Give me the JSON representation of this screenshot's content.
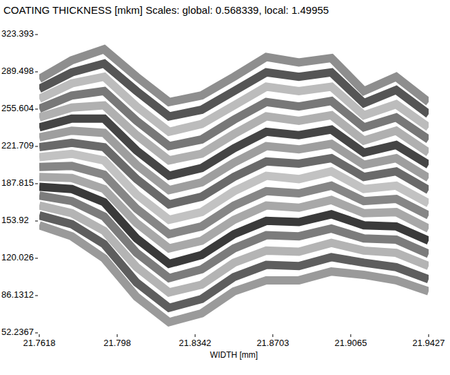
{
  "chart_data": {
    "type": "line",
    "title": "COATING THICKNESS [mkm]  Scales: global: 0.568339, local: 1.49955",
    "x_label": "WIDTH [mm]",
    "x": [
      21.7618,
      21.7769,
      21.7919,
      21.807,
      21.8221,
      21.8372,
      21.8523,
      21.8673,
      21.8824,
      21.8975,
      21.9126,
      21.9276,
      21.9427
    ],
    "xlim": [
      21.7618,
      21.9427
    ],
    "xticks": [
      21.7618,
      21.798,
      21.8342,
      21.8703,
      21.9065,
      21.9427
    ],
    "ylim": [
      52.2367,
      323.393
    ],
    "yticks": [
      52.2367,
      86.1312,
      120.026,
      153.92,
      187.815,
      221.709,
      255.604,
      289.498,
      323.393
    ],
    "grid": false,
    "series": [
      {
        "color": "#9a9a9a",
        "values": [
          150,
          140,
          120,
          85,
          62,
          70,
          90,
          100,
          100,
          108,
          105,
          100,
          90
        ]
      },
      {
        "color": "#5e5e5e",
        "values": [
          159,
          151,
          133,
          98,
          75,
          83,
          103,
          114,
          113,
          121,
          116,
          112,
          101
        ]
      },
      {
        "color": "#b4b4b4",
        "values": [
          168,
          161,
          145,
          112,
          89,
          96,
          116,
          127,
          126,
          134,
          127,
          125,
          113
        ]
      },
      {
        "color": "#7c7c7c",
        "values": [
          177,
          172,
          158,
          125,
          102,
          110,
          129,
          141,
          140,
          147,
          138,
          137,
          124
        ]
      },
      {
        "color": "#3a3a3a",
        "values": [
          185,
          183,
          171,
          138,
          115,
          123,
          142,
          154,
          153,
          160,
          150,
          149,
          136
        ]
      },
      {
        "color": "#a8a8a8",
        "values": [
          194,
          193,
          183,
          152,
          129,
          136,
          155,
          168,
          166,
          173,
          161,
          162,
          147
        ]
      },
      {
        "color": "#868686",
        "values": [
          203,
          204,
          196,
          165,
          142,
          149,
          168,
          181,
          179,
          186,
          172,
          174,
          159
        ]
      },
      {
        "color": "#c2c2c2",
        "values": [
          212,
          215,
          209,
          178,
          155,
          162,
          181,
          195,
          192,
          199,
          183,
          186,
          170
        ]
      },
      {
        "color": "#6a6a6a",
        "values": [
          221,
          225,
          221,
          192,
          169,
          176,
          194,
          208,
          206,
          211,
          194,
          199,
          182
        ]
      },
      {
        "color": "#9e9e9e",
        "values": [
          230,
          236,
          234,
          205,
          182,
          189,
          207,
          222,
          219,
          224,
          205,
          211,
          193
        ]
      },
      {
        "color": "#454545",
        "values": [
          239,
          247,
          247,
          218,
          195,
          202,
          220,
          235,
          232,
          237,
          216,
          223,
          205
        ]
      },
      {
        "color": "#b0b0b0",
        "values": [
          248,
          257,
          259,
          232,
          209,
          215,
          233,
          249,
          245,
          250,
          227,
          236,
          216
        ]
      },
      {
        "color": "#787878",
        "values": [
          256,
          268,
          272,
          245,
          222,
          228,
          246,
          262,
          258,
          263,
          239,
          248,
          228
        ]
      },
      {
        "color": "#bcbcbc",
        "values": [
          265,
          279,
          285,
          258,
          235,
          242,
          259,
          276,
          272,
          276,
          250,
          260,
          239
        ]
      },
      {
        "color": "#555555",
        "values": [
          274,
          289,
          297,
          272,
          249,
          255,
          272,
          289,
          285,
          289,
          261,
          273,
          251
        ]
      },
      {
        "color": "#8e8e8e",
        "values": [
          283,
          300,
          310,
          285,
          262,
          268,
          285,
          303,
          298,
          302,
          272,
          285,
          262
        ]
      }
    ]
  }
}
